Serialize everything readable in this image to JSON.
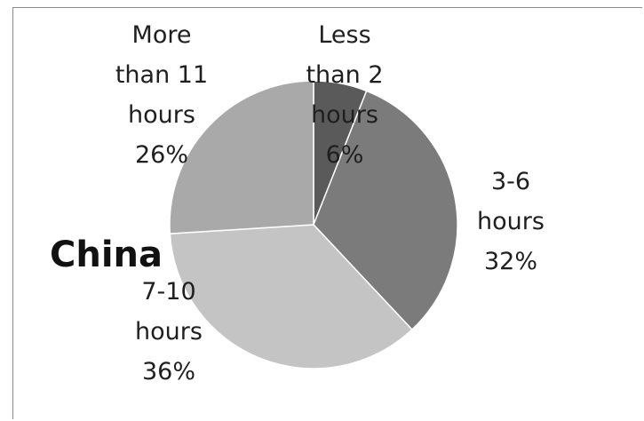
{
  "chart_data": {
    "type": "pie",
    "title": "China",
    "slices": [
      {
        "label_lines": [
          "Less",
          "than 2",
          "hours"
        ],
        "percent_label": "6%",
        "value": 6,
        "color": "#5a5a5a"
      },
      {
        "label_lines": [
          "3-6",
          "hours"
        ],
        "percent_label": "32%",
        "value": 32,
        "color": "#7b7b7b"
      },
      {
        "label_lines": [
          "7-10",
          "hours"
        ],
        "percent_label": "36%",
        "value": 36,
        "color": "#c4c4c4"
      },
      {
        "label_lines": [
          "More",
          "than 11",
          "hours"
        ],
        "percent_label": "26%",
        "value": 26,
        "color": "#a9a9a9"
      }
    ],
    "legend": "none"
  }
}
